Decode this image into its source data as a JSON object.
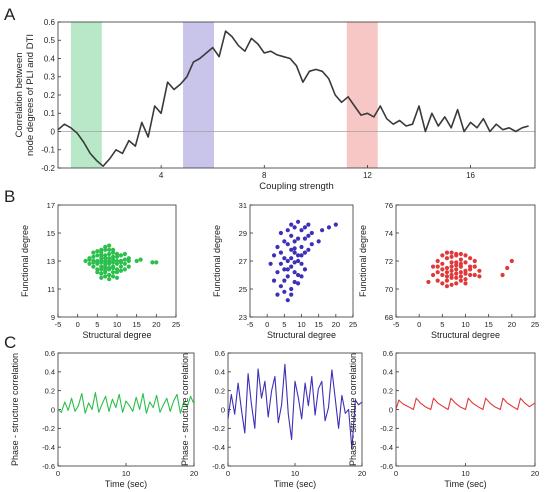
{
  "panel_letters": [
    "A",
    "B",
    "C"
  ],
  "chart_data": [
    {
      "panel": "A",
      "type": "line",
      "xlabel": "Coupling strength",
      "ylabel_lines": [
        "Correlation between",
        "node degrees of PLI and DTI"
      ],
      "xlim": [
        0,
        18.5
      ],
      "ylim": [
        -0.2,
        0.6
      ],
      "xticks": [
        4,
        8,
        12,
        16
      ],
      "yticks": [
        -0.2,
        -0.1,
        0,
        0.1,
        0.2,
        0.3,
        0.4,
        0.5,
        0.6
      ],
      "zero_line": true,
      "bands": [
        {
          "x0": 0.5,
          "x1": 1.7,
          "color": "#b9e8c8"
        },
        {
          "x0": 4.85,
          "x1": 6.05,
          "color": "#c9c4ea"
        },
        {
          "x0": 11.2,
          "x1": 12.4,
          "color": "#f6c7c4"
        }
      ],
      "series": [
        {
          "color": "#3a3a3a",
          "x": [
            0,
            0.25,
            0.5,
            0.75,
            1,
            1.25,
            1.5,
            1.75,
            2,
            2.25,
            2.5,
            2.75,
            3,
            3.25,
            3.5,
            3.75,
            4,
            4.25,
            4.5,
            4.75,
            5,
            5.25,
            5.5,
            5.75,
            6,
            6.25,
            6.5,
            6.75,
            7,
            7.25,
            7.5,
            7.75,
            8,
            8.25,
            8.5,
            8.75,
            9,
            9.25,
            9.5,
            9.75,
            10,
            10.25,
            10.5,
            10.75,
            11,
            11.25,
            11.5,
            11.75,
            12,
            12.25,
            12.5,
            12.75,
            13,
            13.25,
            13.5,
            13.75,
            14,
            14.25,
            14.5,
            14.75,
            15,
            15.25,
            15.5,
            15.75,
            16,
            16.25,
            16.5,
            16.75,
            17,
            17.25,
            17.5,
            17.75,
            18,
            18.25
          ],
          "y": [
            0.01,
            0.04,
            0.02,
            -0.01,
            -0.06,
            -0.12,
            -0.16,
            -0.19,
            -0.15,
            -0.1,
            -0.12,
            -0.05,
            -0.08,
            0.05,
            -0.03,
            0.14,
            0.1,
            0.27,
            0.23,
            0.26,
            0.3,
            0.38,
            0.4,
            0.43,
            0.46,
            0.41,
            0.55,
            0.52,
            0.47,
            0.44,
            0.51,
            0.48,
            0.43,
            0.44,
            0.42,
            0.41,
            0.4,
            0.36,
            0.27,
            0.33,
            0.34,
            0.33,
            0.29,
            0.2,
            0.16,
            0.19,
            0.14,
            0.09,
            0.1,
            0.08,
            0.14,
            0.07,
            0.04,
            0.06,
            0.03,
            0.04,
            0.14,
            0.0,
            0.1,
            0.03,
            0.08,
            0.02,
            0.12,
            0.0,
            0.05,
            0.02,
            0.07,
            0.0,
            0.04,
            0.01,
            0.02,
            0.0,
            0.02,
            0.03
          ]
        }
      ]
    },
    {
      "panel": "B1",
      "type": "scatter",
      "xlabel": "Structural degree",
      "ylabel": "Functional degree",
      "xlim": [
        -5,
        25
      ],
      "ylim": [
        9,
        17
      ],
      "xticks": [
        -5,
        0,
        5,
        10,
        15,
        20,
        25
      ],
      "yticks": [
        9,
        11,
        13,
        15,
        17
      ],
      "color": "#2bbf4b",
      "x": [
        2,
        3,
        3,
        3,
        4,
        4,
        4,
        4,
        4,
        5,
        5,
        5,
        5,
        5,
        5,
        6,
        6,
        6,
        6,
        6,
        6,
        6,
        6,
        6,
        6,
        7,
        7,
        7,
        7,
        7,
        7,
        7,
        7,
        7,
        7,
        7,
        8,
        8,
        8,
        8,
        8,
        8,
        8,
        8,
        8,
        8,
        8,
        9,
        9,
        9,
        9,
        9,
        9,
        9,
        9,
        9,
        10,
        10,
        10,
        10,
        10,
        10,
        10,
        11,
        11,
        11,
        11,
        11,
        12,
        12,
        12,
        12,
        13,
        13,
        13,
        15,
        16,
        19,
        20
      ],
      "y": [
        13.0,
        13.1,
        12.8,
        13.2,
        13.0,
        12.6,
        13.3,
        12.9,
        13.6,
        13.0,
        12.4,
        13.4,
        12.8,
        13.7,
        12.2,
        13.0,
        12.6,
        13.4,
        12.1,
        13.8,
        12.9,
        12.4,
        13.2,
        11.8,
        13.6,
        13.0,
        12.5,
        13.4,
        12.2,
        13.8,
        12.8,
        11.9,
        13.2,
        12.6,
        14.0,
        12.3,
        13.0,
        12.5,
        13.5,
        12.0,
        13.8,
        12.8,
        11.7,
        13.2,
        12.4,
        14.1,
        12.9,
        13.1,
        12.6,
        13.6,
        12.2,
        13.3,
        11.9,
        12.9,
        13.8,
        12.5,
        13.0,
        12.4,
        13.5,
        12.8,
        12.2,
        13.3,
        11.8,
        12.9,
        13.4,
        12.3,
        13.0,
        12.6,
        13.1,
        12.4,
        13.5,
        12.8,
        13.2,
        12.6,
        13.0,
        13.0,
        13.1,
        12.9,
        12.9
      ]
    },
    {
      "panel": "B2",
      "type": "scatter",
      "xlabel": "Structural degree",
      "ylabel": "",
      "xlim": [
        -5,
        25
      ],
      "ylim": [
        23,
        31
      ],
      "xticks": [
        -5,
        0,
        5,
        10,
        15,
        20,
        25
      ],
      "yticks": [
        23,
        25,
        27,
        29,
        31
      ],
      "color": "#3d2fb8",
      "x": [
        1,
        2,
        2,
        3,
        3,
        3,
        4,
        4,
        4,
        4,
        5,
        5,
        5,
        5,
        5,
        6,
        6,
        6,
        6,
        6,
        6,
        7,
        7,
        7,
        7,
        7,
        7,
        7,
        8,
        8,
        8,
        8,
        8,
        8,
        8,
        9,
        9,
        9,
        9,
        9,
        9,
        10,
        10,
        10,
        10,
        10,
        11,
        11,
        11,
        11,
        12,
        12,
        12,
        13,
        13,
        15,
        16,
        18,
        20
      ],
      "y": [
        26.8,
        25.6,
        27.4,
        24.6,
        26.2,
        28.0,
        25.2,
        26.8,
        27.6,
        29.0,
        24.8,
        26.4,
        27.2,
        28.4,
        25.6,
        24.2,
        25.9,
        27.0,
        28.2,
        29.2,
        26.4,
        25.0,
        26.6,
        27.8,
        28.8,
        27.2,
        24.6,
        29.6,
        25.5,
        26.9,
        27.6,
        28.4,
        29.4,
        26.2,
        27.9,
        26.0,
        27.4,
        28.6,
        29.8,
        25.4,
        27.0,
        26.8,
        28.0,
        29.2,
        27.4,
        25.9,
        27.6,
        28.6,
        29.4,
        26.4,
        27.8,
        28.8,
        29.6,
        28.2,
        29.0,
        28.4,
        29.2,
        29.4,
        29.6
      ]
    },
    {
      "panel": "B3",
      "type": "scatter",
      "xlabel": "Structural degree",
      "ylabel": "",
      "xlim": [
        -5,
        25
      ],
      "ylim": [
        68,
        76
      ],
      "xticks": [
        -5,
        0,
        5,
        10,
        15,
        20,
        25
      ],
      "yticks": [
        68,
        70,
        72,
        74,
        76
      ],
      "color": "#e0393a",
      "x": [
        2,
        3,
        3,
        4,
        4,
        4,
        4,
        5,
        5,
        5,
        5,
        5,
        6,
        6,
        6,
        6,
        6,
        6,
        6,
        7,
        7,
        7,
        7,
        7,
        7,
        7,
        7,
        8,
        8,
        8,
        8,
        8,
        8,
        8,
        8,
        9,
        9,
        9,
        9,
        9,
        9,
        9,
        10,
        10,
        10,
        10,
        10,
        10,
        11,
        11,
        11,
        11,
        12,
        12,
        12,
        13,
        13,
        18,
        19,
        20
      ],
      "y": [
        70.5,
        71.0,
        71.6,
        70.6,
        71.2,
        72.0,
        71.6,
        70.4,
        71.0,
        71.8,
        72.4,
        71.4,
        70.2,
        70.9,
        71.5,
        72.2,
        71.2,
        72.6,
        70.6,
        70.3,
        71.0,
        71.6,
        72.3,
        70.8,
        71.9,
        72.6,
        71.3,
        70.4,
        71.1,
        71.7,
        72.4,
        70.8,
        71.9,
        72.5,
        71.4,
        70.6,
        71.2,
        71.8,
        72.5,
        70.9,
        71.6,
        72.1,
        70.7,
        71.3,
        71.9,
        72.4,
        71.1,
        70.4,
        71.0,
        71.6,
        72.2,
        71.4,
        71.0,
        71.6,
        72.0,
        71.3,
        70.9,
        71.0,
        71.5,
        72.0
      ]
    },
    {
      "panel": "C1",
      "type": "line",
      "xlabel": "Time (sec)",
      "ylabel": "Phase - structure correlation",
      "xlim": [
        0,
        20
      ],
      "ylim": [
        -0.6,
        0.6
      ],
      "xticks": [
        0,
        10,
        20
      ],
      "yticks": [
        -0.6,
        -0.4,
        -0.2,
        0,
        0.2,
        0.4,
        0.6
      ],
      "series": [
        {
          "color": "#2bbf4b",
          "x": [
            0,
            0.5,
            1,
            1.5,
            2,
            2.5,
            3,
            3.5,
            4,
            4.5,
            5,
            5.5,
            6,
            6.5,
            7,
            7.5,
            8,
            8.5,
            9,
            9.5,
            10,
            10.5,
            11,
            11.5,
            12,
            12.5,
            13,
            13.5,
            14,
            14.5,
            15,
            15.5,
            16,
            16.5,
            17,
            17.5,
            18,
            18.5,
            19,
            19.5,
            20
          ],
          "y": [
            0.0,
            -0.03,
            0.08,
            -0.01,
            0.12,
            -0.02,
            0.04,
            0.17,
            -0.04,
            0.07,
            0.0,
            0.18,
            -0.03,
            0.06,
            0.14,
            -0.02,
            0.11,
            0.02,
            0.16,
            -0.03,
            0.09,
            0.04,
            -0.02,
            0.13,
            0.0,
            0.17,
            -0.04,
            0.08,
            0.02,
            0.15,
            -0.03,
            0.05,
            0.12,
            -0.02,
            0.09,
            0.16,
            -0.04,
            0.08,
            0.03,
            0.14,
            0.06
          ]
        }
      ]
    },
    {
      "panel": "C2",
      "type": "line",
      "xlabel": "Time (sec)",
      "ylabel": "Phase - structure correlation",
      "xlim": [
        0,
        20
      ],
      "ylim": [
        -0.6,
        0.6
      ],
      "xticks": [
        0,
        10,
        20
      ],
      "yticks": [
        -0.6,
        -0.4,
        -0.2,
        0,
        0.2,
        0.4,
        0.6
      ],
      "series": [
        {
          "color": "#3d2fb8",
          "x": [
            0,
            0.5,
            1,
            1.5,
            2,
            2.5,
            3,
            3.5,
            4,
            4.5,
            5,
            5.5,
            6,
            6.5,
            7,
            7.5,
            8,
            8.5,
            9,
            9.5,
            10,
            10.5,
            11,
            11.5,
            12,
            12.5,
            13,
            13.5,
            14,
            14.5,
            15,
            15.5,
            16,
            16.5,
            17,
            17.5,
            18,
            18.5,
            19,
            19.5,
            20
          ],
          "y": [
            -0.1,
            0.16,
            -0.05,
            0.28,
            0.0,
            -0.25,
            0.38,
            0.06,
            -0.2,
            0.43,
            0.12,
            0.3,
            -0.08,
            0.2,
            0.35,
            -0.14,
            0.05,
            0.48,
            -0.05,
            -0.32,
            0.3,
            0.12,
            -0.1,
            0.28,
            0.04,
            0.35,
            -0.06,
            0.22,
            0.3,
            -0.12,
            0.02,
            0.42,
            0.12,
            -0.2,
            0.15,
            -0.04,
            0.0,
            -0.42,
            0.1,
            0.05,
            0.08
          ]
        }
      ]
    },
    {
      "panel": "C3",
      "type": "line",
      "xlabel": "Time (sec)",
      "ylabel": "Phase - structure correlation",
      "xlim": [
        0,
        20
      ],
      "ylim": [
        -0.6,
        0.6
      ],
      "xticks": [
        0,
        10,
        20
      ],
      "yticks": [
        -0.6,
        -0.4,
        -0.2,
        0,
        0.2,
        0.4,
        0.6
      ],
      "series": [
        {
          "color": "#e0393a",
          "x": [
            0,
            0.4,
            1.0,
            1.8,
            2.5,
            2.9,
            3.5,
            4.2,
            5.0,
            5.4,
            6.0,
            6.8,
            7.5,
            7.9,
            8.5,
            9.2,
            10.0,
            10.4,
            11.0,
            11.8,
            12.5,
            12.9,
            13.5,
            14.2,
            15.0,
            15.4,
            16.0,
            16.8,
            17.5,
            17.9,
            18.5,
            19.2,
            20.0
          ],
          "y": [
            0.0,
            0.1,
            0.06,
            0.03,
            0.0,
            0.12,
            0.07,
            0.03,
            0.0,
            0.12,
            0.07,
            0.03,
            0.0,
            0.12,
            0.07,
            0.03,
            0.0,
            0.12,
            0.07,
            0.03,
            0.0,
            0.12,
            0.07,
            0.03,
            0.0,
            0.12,
            0.07,
            0.03,
            0.0,
            0.12,
            0.07,
            0.03,
            0.07
          ]
        }
      ]
    }
  ]
}
